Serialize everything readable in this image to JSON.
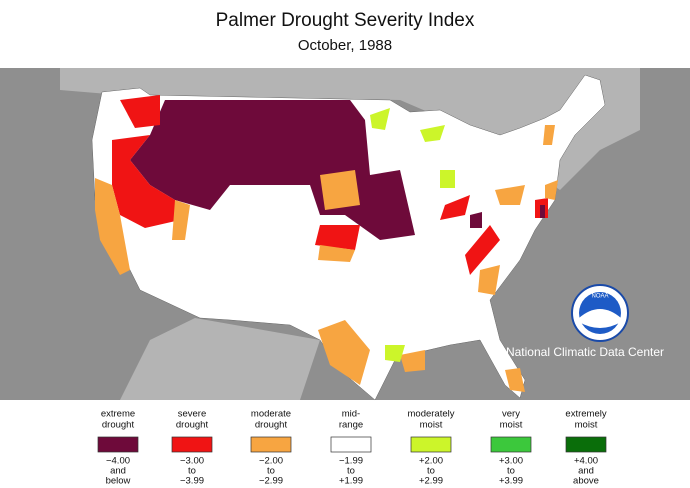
{
  "title": "Palmer Drought Severity Index",
  "subtitle": "October, 1988",
  "agency": "National Climatic Data Center",
  "logo": "NOAA",
  "legend": [
    {
      "label": [
        "extreme",
        "drought"
      ],
      "color": "#6e0a3a",
      "range": [
        "−4.00",
        "and",
        "below"
      ]
    },
    {
      "label": [
        "severe",
        "drought"
      ],
      "color": "#f01414",
      "range": [
        "−3.00",
        "to",
        "−3.99"
      ]
    },
    {
      "label": [
        "moderate",
        "drought"
      ],
      "color": "#f7a541",
      "range": [
        "−2.00",
        "to",
        "−2.99"
      ]
    },
    {
      "label": [
        "mid-",
        "range"
      ],
      "color": "#ffffff",
      "range": [
        "−1.99",
        "to",
        "+1.99"
      ]
    },
    {
      "label": [
        "moderately",
        "moist"
      ],
      "color": "#ccf52a",
      "range": [
        "+2.00",
        "to",
        "+2.99"
      ]
    },
    {
      "label": [
        "very",
        "moist"
      ],
      "color": "#3cc83c",
      "range": [
        "+3.00",
        "to",
        "+3.99"
      ]
    },
    {
      "label": [
        "extremely",
        "moist"
      ],
      "color": "#0a6e0a",
      "range": [
        "+4.00",
        "and",
        "above"
      ]
    }
  ]
}
